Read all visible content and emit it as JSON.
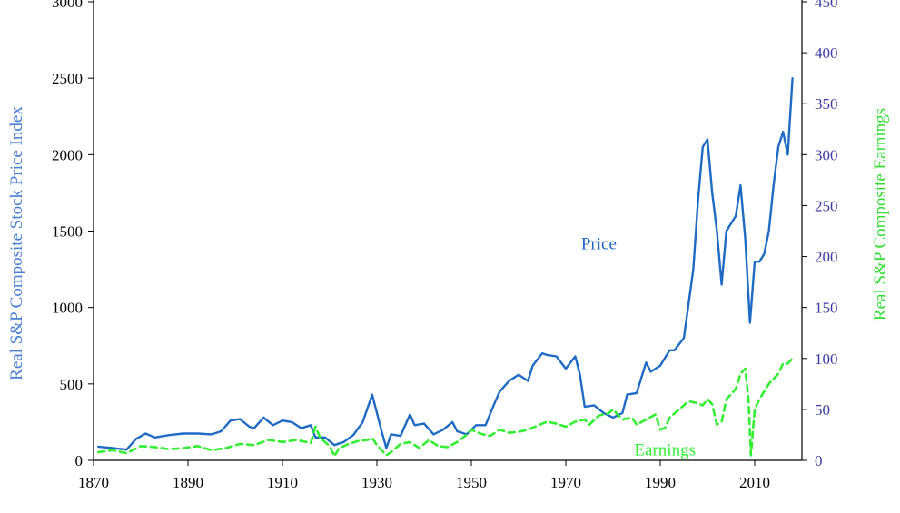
{
  "colors": {
    "price": "#1f6bc4",
    "earnings": "#33ee33",
    "axis": "#000000",
    "right_ticks": "#3a3aa0",
    "left_title": "#4a7fd0",
    "right_title": "#33dd33"
  },
  "chart_data": {
    "type": "line",
    "title": "",
    "xlabel": "",
    "ylabel": "Real S&P Composite Stock Price Index",
    "ylabel_right": "Real S&P Composite Earnings",
    "xlim": [
      1870,
      2020
    ],
    "ylim": [
      0,
      3000
    ],
    "ylim_right": [
      0,
      450
    ],
    "x_ticks": [
      1870,
      1890,
      1910,
      1930,
      1950,
      1970,
      1990,
      2010
    ],
    "y_ticks": [
      0,
      500,
      1000,
      1500,
      2000,
      2500,
      3000
    ],
    "y_ticks_right": [
      0,
      50,
      100,
      150,
      200,
      250,
      300,
      350,
      400,
      450
    ],
    "grid": false,
    "legend": "none",
    "annotations": [
      {
        "text": "Price",
        "x": 1977,
        "y": 1380
      },
      {
        "text": "Earnings",
        "x": 1991,
        "y": 5
      }
    ],
    "series": [
      {
        "name": "Price",
        "axis": "left",
        "style": "solid",
        "x": [
          1871,
          1874,
          1877,
          1879,
          1881,
          1883,
          1886,
          1889,
          1892,
          1895,
          1897,
          1899,
          1901,
          1903,
          1904,
          1906,
          1908,
          1910,
          1912,
          1914,
          1916,
          1917,
          1919,
          1921,
          1923,
          1925,
          1927,
          1929,
          1930,
          1931,
          1932,
          1933,
          1935,
          1937,
          1938,
          1940,
          1942,
          1944,
          1946,
          1947,
          1949,
          1951,
          1953,
          1955,
          1956,
          1958,
          1960,
          1962,
          1963,
          1965,
          1966,
          1968,
          1970,
          1972,
          1973,
          1974,
          1976,
          1978,
          1980,
          1982,
          1983,
          1985,
          1987,
          1988,
          1990,
          1992,
          1993,
          1995,
          1997,
          1998,
          1999,
          2000,
          2001,
          2002,
          2003,
          2004,
          2006,
          2007,
          2008,
          2009,
          2010,
          2011,
          2012,
          2013,
          2014,
          2015,
          2016,
          2017,
          2018
        ],
        "y": [
          90,
          80,
          70,
          140,
          175,
          150,
          165,
          175,
          175,
          170,
          190,
          260,
          270,
          220,
          210,
          280,
          230,
          260,
          250,
          210,
          230,
          150,
          150,
          100,
          120,
          165,
          250,
          430,
          310,
          190,
          80,
          170,
          160,
          300,
          230,
          240,
          170,
          200,
          250,
          190,
          170,
          230,
          230,
          380,
          450,
          520,
          560,
          520,
          620,
          700,
          690,
          680,
          600,
          680,
          560,
          350,
          360,
          310,
          280,
          310,
          430,
          440,
          640,
          580,
          620,
          720,
          720,
          800,
          1250,
          1700,
          2050,
          2100,
          1750,
          1500,
          1150,
          1500,
          1600,
          1800,
          1450,
          900,
          1300,
          1300,
          1350,
          1500,
          1800,
          2050,
          2150,
          2000,
          2500
        ]
      },
      {
        "name": "Earnings",
        "axis": "right",
        "style": "dashed",
        "x": [
          1871,
          1874,
          1877,
          1880,
          1883,
          1886,
          1889,
          1892,
          1895,
          1898,
          1901,
          1904,
          1907,
          1910,
          1913,
          1916,
          1917,
          1918,
          1920,
          1921,
          1922,
          1924,
          1926,
          1928,
          1929,
          1930,
          1931,
          1932,
          1933,
          1935,
          1937,
          1939,
          1941,
          1943,
          1945,
          1947,
          1949,
          1950,
          1952,
          1954,
          1956,
          1958,
          1960,
          1962,
          1964,
          1966,
          1968,
          1970,
          1972,
          1974,
          1975,
          1977,
          1979,
          1980,
          1982,
          1984,
          1985,
          1987,
          1989,
          1990,
          1991,
          1992,
          1994,
          1996,
          1998,
          1999,
          2000,
          2001,
          2002,
          2003,
          2004,
          2006,
          2007,
          2008,
          2008.7,
          2009.2,
          2010,
          2011,
          2013,
          2014,
          2015,
          2016,
          2017,
          2018
        ],
        "y": [
          8,
          10,
          7,
          14,
          13,
          11,
          12,
          14,
          10,
          12,
          16,
          15,
          20,
          18,
          20,
          17,
          33,
          22,
          14,
          4,
          12,
          16,
          19,
          20,
          22,
          15,
          10,
          5,
          8,
          16,
          18,
          12,
          20,
          14,
          13,
          18,
          25,
          30,
          26,
          24,
          30,
          27,
          28,
          30,
          34,
          38,
          36,
          33,
          38,
          40,
          35,
          44,
          46,
          50,
          40,
          42,
          35,
          40,
          45,
          30,
          32,
          42,
          50,
          58,
          56,
          54,
          60,
          55,
          35,
          38,
          60,
          70,
          85,
          90,
          60,
          5,
          50,
          60,
          75,
          80,
          85,
          95,
          95,
          100
        ]
      }
    ]
  }
}
